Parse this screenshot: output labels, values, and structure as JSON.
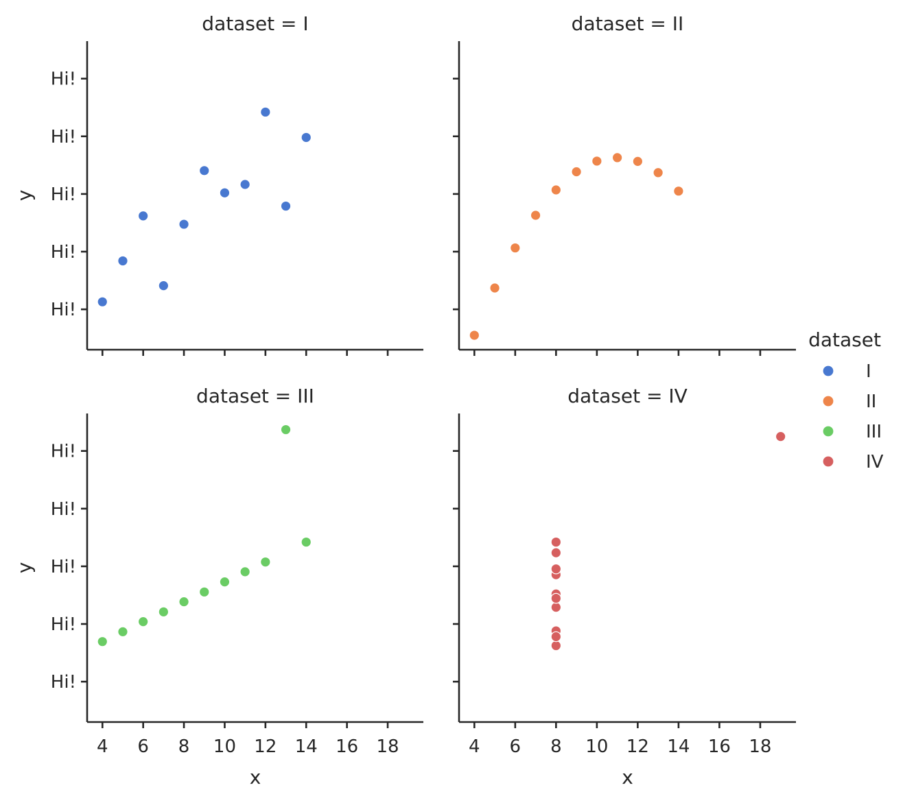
{
  "chart_data": {
    "type": "scatter",
    "facet": "dataset",
    "xlabel": "x",
    "ylabel": "y",
    "xlim": [
      3.25,
      19.75
    ],
    "ylim": [
      2.6,
      13.3
    ],
    "x_ticks": [
      4,
      6,
      8,
      10,
      12,
      14,
      16,
      18
    ],
    "y_ticks": [
      4,
      6,
      8,
      10,
      12
    ],
    "y_tick_labels": [
      "Hi!",
      "Hi!",
      "Hi!",
      "Hi!",
      "Hi!"
    ],
    "grid": false,
    "legend": {
      "title": "dataset",
      "placement": "right",
      "entries": [
        "I",
        "II",
        "III",
        "IV"
      ]
    },
    "panels": [
      {
        "title": "dataset = I",
        "series": "I",
        "color": "#4878d0",
        "x": [
          10,
          8,
          13,
          9,
          11,
          14,
          6,
          4,
          12,
          7,
          5
        ],
        "y": [
          8.04,
          6.95,
          7.58,
          8.81,
          8.33,
          9.96,
          7.24,
          4.26,
          10.84,
          4.82,
          5.68
        ]
      },
      {
        "title": "dataset = II",
        "series": "II",
        "color": "#ee854a",
        "x": [
          10,
          8,
          13,
          9,
          11,
          14,
          6,
          4,
          12,
          7,
          5
        ],
        "y": [
          9.14,
          8.14,
          8.74,
          8.77,
          9.26,
          8.1,
          6.13,
          3.1,
          9.13,
          7.26,
          4.74
        ]
      },
      {
        "title": "dataset = III",
        "series": "III",
        "color": "#6acc64",
        "x": [
          10,
          8,
          13,
          9,
          11,
          14,
          6,
          4,
          12,
          7,
          5
        ],
        "y": [
          7.46,
          6.77,
          12.74,
          7.11,
          7.81,
          8.84,
          6.08,
          5.39,
          8.15,
          6.42,
          5.73
        ]
      },
      {
        "title": "dataset = IV",
        "series": "IV",
        "color": "#d65f5f",
        "x": [
          8,
          8,
          8,
          8,
          8,
          8,
          8,
          19,
          8,
          8,
          8
        ],
        "y": [
          6.58,
          5.76,
          7.71,
          8.84,
          8.47,
          7.04,
          5.25,
          12.5,
          5.56,
          7.91,
          6.89
        ]
      }
    ]
  }
}
